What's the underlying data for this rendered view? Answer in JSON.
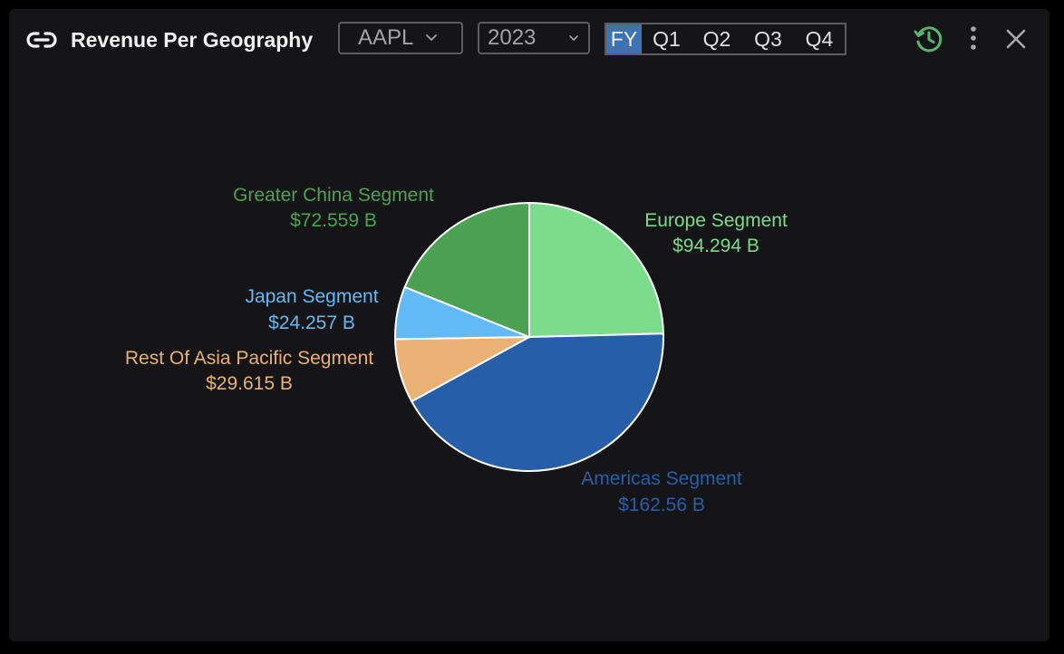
{
  "header": {
    "title": "Revenue Per Geography",
    "link_icon": "link-icon",
    "ticker": "AAPL",
    "year": "2023",
    "periods": [
      "FY",
      "Q1",
      "Q2",
      "Q3",
      "Q4"
    ],
    "active_period": "FY",
    "actions": [
      "history-icon",
      "more-vertical-icon",
      "close-icon"
    ]
  },
  "colors": {
    "panel_bg": "#151517",
    "active_period_bg": "#3f72b0",
    "history_icon": "#58b36b"
  },
  "chart_data": {
    "type": "pie",
    "title": "",
    "start": "12 o'clock, clockwise",
    "slices": [
      {
        "label": "Europe Segment",
        "value_label": "$94.294 B",
        "value": 94.294,
        "color": "#7bdc8c"
      },
      {
        "label": "Americas Segment",
        "value_label": "$162.56 B",
        "value": 162.56,
        "color": "#265ea8"
      },
      {
        "label": "Rest Of Asia Pacific Segment",
        "value_label": "$29.615 B",
        "value": 29.615,
        "color": "#e9b174"
      },
      {
        "label": "Japan Segment",
        "value_label": "$24.257 B",
        "value": 24.257,
        "color": "#61b9f6"
      },
      {
        "label": "Greater China Segment",
        "value_label": "$72.559 B",
        "value": 72.559,
        "color": "#4ca153"
      }
    ]
  }
}
